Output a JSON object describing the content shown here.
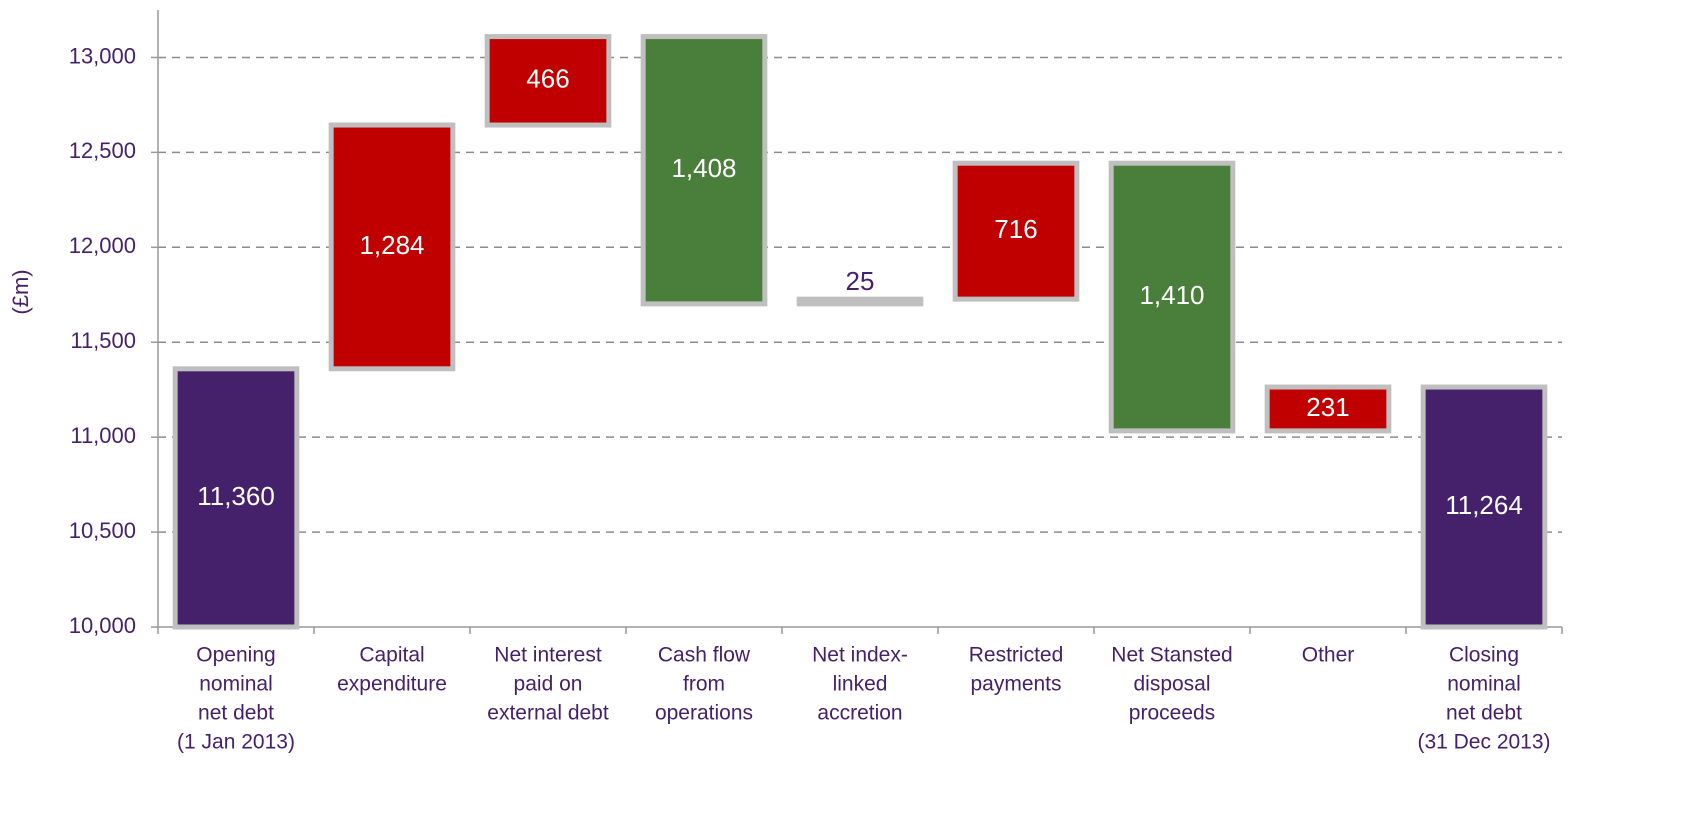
{
  "chart_data": {
    "type": "waterfall",
    "y_label": "(£m)",
    "categories": [
      [
        "Opening",
        "nominal",
        "net debt",
        "(1 Jan 2013)"
      ],
      [
        "Capital",
        "expenditure"
      ],
      [
        "Net interest",
        "paid on",
        "external debt"
      ],
      [
        "Cash flow",
        "from",
        "operations"
      ],
      [
        "Net index-",
        "linked",
        "accretion"
      ],
      [
        "Restricted",
        "payments"
      ],
      [
        "Net Stansted",
        "disposal",
        "proceeds"
      ],
      [
        "Other"
      ],
      [
        "Closing",
        "nominal",
        "net debt",
        "(31 Dec 2013)"
      ]
    ],
    "measure": [
      "absolute",
      "relative",
      "relative",
      "relative",
      "relative",
      "relative",
      "relative",
      "relative",
      "total"
    ],
    "values": [
      11360,
      1284,
      466,
      -1408,
      25,
      716,
      -1410,
      231,
      11264
    ],
    "value_labels": [
      "11,360",
      "1,284",
      "466",
      "1,408",
      "25",
      "716",
      "1,410",
      "231",
      "11,264"
    ],
    "colors": {
      "total": "#46216b",
      "increase": "#c00000",
      "decrease": "#4a7e3b"
    },
    "ylim": [
      10000,
      13250
    ],
    "yticks": [
      {
        "value": 10000,
        "label": "10,000"
      },
      {
        "value": 10500,
        "label": "10,500"
      },
      {
        "value": 11000,
        "label": "11,000"
      },
      {
        "value": 11500,
        "label": "11,500"
      },
      {
        "value": 12000,
        "label": "12,000"
      },
      {
        "value": 12500,
        "label": "12,500"
      },
      {
        "value": 13000,
        "label": "13,000"
      }
    ],
    "grid": true
  }
}
